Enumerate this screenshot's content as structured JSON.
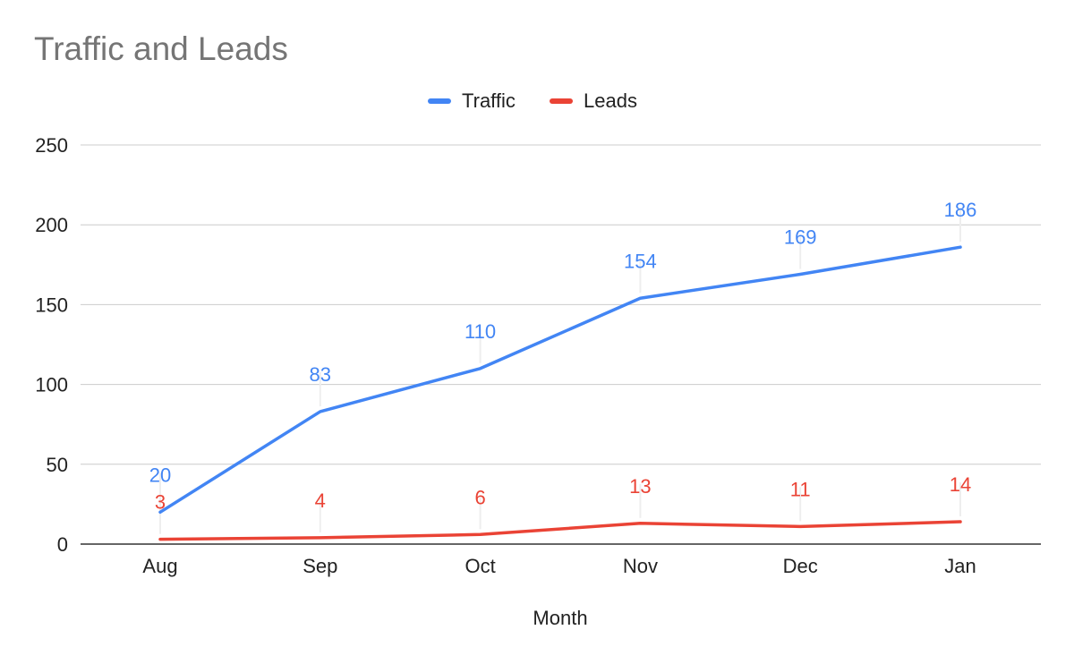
{
  "chart_data": {
    "type": "line",
    "title": "Traffic and Leads",
    "xlabel": "Month",
    "ylabel": "",
    "categories": [
      "Aug",
      "Sep",
      "Oct",
      "Nov",
      "Dec",
      "Jan"
    ],
    "ylim": [
      0,
      250
    ],
    "yticks": [
      0,
      50,
      100,
      150,
      200,
      250
    ],
    "grid": true,
    "legend_position": "top",
    "series": [
      {
        "name": "Traffic",
        "color": "#4285f4",
        "values": [
          20,
          83,
          110,
          154,
          169,
          186
        ]
      },
      {
        "name": "Leads",
        "color": "#ea4335",
        "values": [
          3,
          4,
          6,
          13,
          11,
          14
        ]
      }
    ]
  }
}
